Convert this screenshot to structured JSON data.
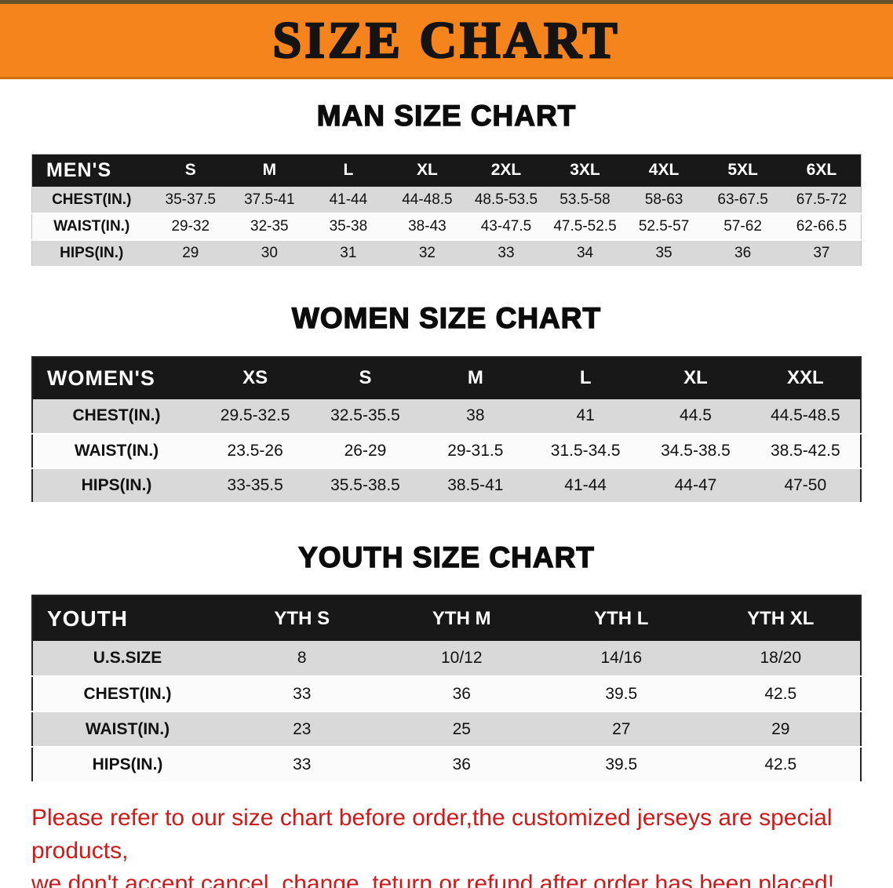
{
  "theme": {
    "banner-bg": "#f6841d",
    "banner-text": "#141414",
    "header-bg": "#181818",
    "header-text": "#ffffff",
    "row-shade": "#d9d9d9",
    "row-plain": "#fbfbfb",
    "notice-red": "#ce1a1a"
  },
  "banner": {
    "title": "SIZE CHART"
  },
  "sections": [
    {
      "heading": "MAN SIZE CHART",
      "table": {
        "corner": "MEN'S",
        "columns": [
          "S",
          "M",
          "L",
          "XL",
          "2XL",
          "3XL",
          "4XL",
          "5XL",
          "6XL"
        ],
        "rows": [
          {
            "label": "CHEST(IN.)",
            "values": [
              "35-37.5",
              "37.5-41",
              "41-44",
              "44-48.5",
              "48.5-53.5",
              "53.5-58",
              "58-63",
              "63-67.5",
              "67.5-72"
            ]
          },
          {
            "label": "WAIST(IN.)",
            "values": [
              "29-32",
              "32-35",
              "35-38",
              "38-43",
              "43-47.5",
              "47.5-52.5",
              "52.5-57",
              "57-62",
              "62-66.5"
            ]
          },
          {
            "label": "HIPS(IN.)",
            "values": [
              "29",
              "30",
              "31",
              "32",
              "33",
              "34",
              "35",
              "36",
              "37"
            ]
          }
        ]
      }
    },
    {
      "heading": "WOMEN SIZE CHART",
      "table": {
        "corner": "WOMEN'S",
        "columns": [
          "XS",
          "S",
          "M",
          "L",
          "XL",
          "XXL"
        ],
        "rows": [
          {
            "label": "CHEST(IN.)",
            "values": [
              "29.5-32.5",
              "32.5-35.5",
              "38",
              "41",
              "44.5",
              "44.5-48.5"
            ]
          },
          {
            "label": "WAIST(IN.)",
            "values": [
              "23.5-26",
              "26-29",
              "29-31.5",
              "31.5-34.5",
              "34.5-38.5",
              "38.5-42.5"
            ]
          },
          {
            "label": "HIPS(IN.)",
            "values": [
              "33-35.5",
              "35.5-38.5",
              "38.5-41",
              "41-44",
              "44-47",
              "47-50"
            ]
          }
        ]
      }
    },
    {
      "heading": "YOUTH SIZE CHART",
      "table": {
        "corner": "YOUTH",
        "columns": [
          "YTH S",
          "YTH M",
          "YTH L",
          "YTH XL"
        ],
        "rows": [
          {
            "label": "U.S.SIZE",
            "values": [
              "8",
              "10/12",
              "14/16",
              "18/20"
            ]
          },
          {
            "label": "CHEST(IN.)",
            "values": [
              "33",
              "36",
              "39.5",
              "42.5"
            ]
          },
          {
            "label": "WAIST(IN.)",
            "values": [
              "23",
              "25",
              "27",
              "29"
            ]
          },
          {
            "label": "HIPS(IN.)",
            "values": [
              "33",
              "36",
              "39.5",
              "42.5"
            ]
          }
        ]
      }
    }
  ],
  "footer": {
    "line1": "Please refer to our size chart before order,the customized jerseys are special products,",
    "line2": "we don't accept cancel, change, teturn or refund after order has been placed!"
  }
}
